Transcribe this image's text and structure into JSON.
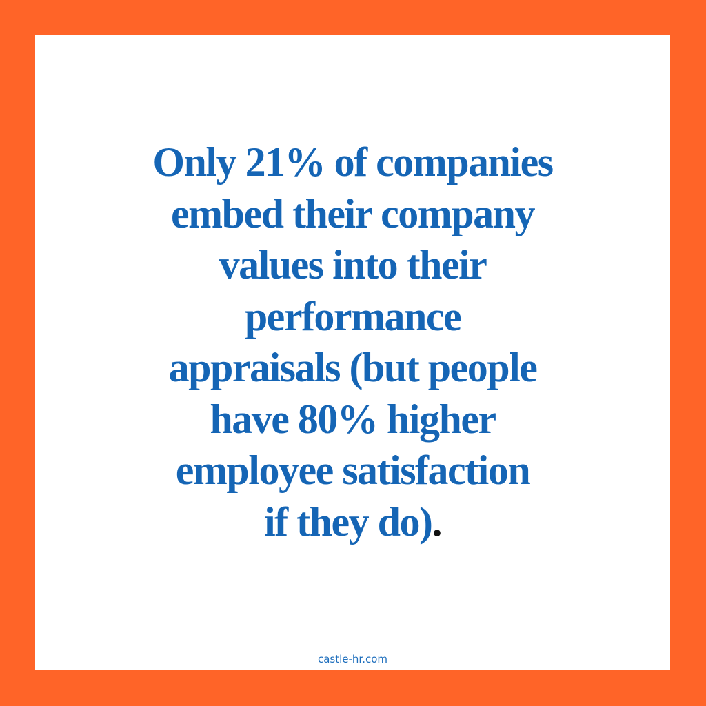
{
  "statement": {
    "lines": [
      "Only 21% of companies",
      "embed their company",
      "values into their",
      "performance",
      "appraisals (but people",
      "have 80% higher",
      "employee satisfaction",
      "if they do)"
    ],
    "end_mark": "."
  },
  "footer": {
    "site": "castle-hr.com"
  }
}
